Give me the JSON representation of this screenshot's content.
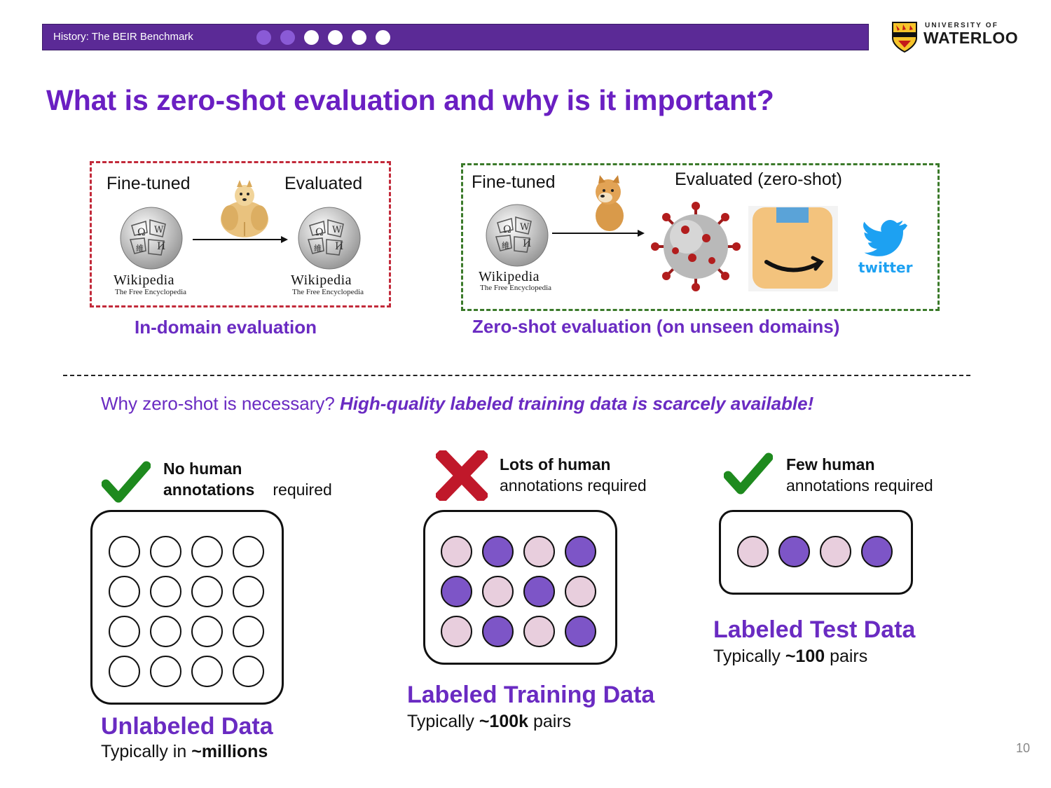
{
  "header": {
    "section_title": "History: The BEIR Benchmark",
    "progress_dots": [
      "#8a5ad6",
      "#8a5ad6",
      "#ffffff",
      "#ffffff",
      "#ffffff",
      "#ffffff"
    ],
    "logo": {
      "small": "UNIVERSITY OF",
      "big": "WATERLOO",
      "icon": "shield-crest-icon"
    }
  },
  "title": "What is zero-shot evaluation and why is it important?",
  "in_domain": {
    "finetuned_label": "Fine-tuned",
    "evaluated_label": "Evaluated",
    "wiki_name": "Wikipedia",
    "wiki_tagline": "The Free Encyclopedia",
    "caption": "In-domain evaluation",
    "mascot_icon": "muscular-doge-icon"
  },
  "zero_shot": {
    "finetuned_label": "Fine-tuned",
    "evaluated_label": "Evaluated (zero-shot)",
    "wiki_name": "Wikipedia",
    "wiki_tagline": "The Free Encyclopedia",
    "twitter_text": "twitter",
    "caption": "Zero-shot evaluation (on unseen domains)",
    "mascot_icon": "cheems-doge-icon",
    "domain_icons": [
      "coronavirus-icon",
      "amazon-icon",
      "twitter-icon"
    ]
  },
  "why": {
    "question": "Why zero-shot is necessary?",
    "answer": "High-quality labeled training data is scarcely available!"
  },
  "colors": {
    "purple": "#6a2bc2",
    "label_dark": "#7d55c7",
    "label_light": "#e8cedd",
    "check": "#1e8a1e",
    "cross": "#c0182a"
  },
  "columns": [
    {
      "status_icon": "check-icon",
      "ann_bold": "No human annotations",
      "ann_rest": "required",
      "heading": "Unlabeled Data",
      "sub_prefix": "Typically in ",
      "sub_bold": "~millions",
      "sub_suffix": ""
    },
    {
      "status_icon": "cross-icon",
      "ann_bold": "Lots of human",
      "ann_rest": "annotations required",
      "heading": "Labeled Training Data",
      "sub_prefix": "Typically ",
      "sub_bold": "~100k",
      "sub_suffix": " pairs"
    },
    {
      "status_icon": "check-icon",
      "ann_bold": "Few human",
      "ann_rest": "annotations required",
      "heading": "Labeled Test Data",
      "sub_prefix": "Typically ",
      "sub_bold": "~100",
      "sub_suffix": " pairs"
    }
  ],
  "page_number": "10"
}
